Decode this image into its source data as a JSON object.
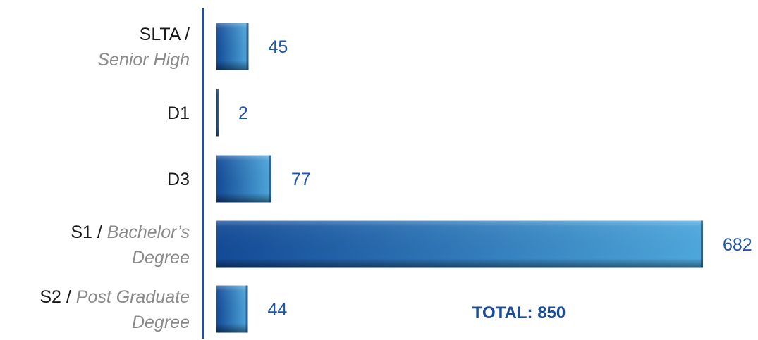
{
  "chart_data": {
    "type": "bar",
    "orientation": "horizontal",
    "categories": [
      {
        "main": "SLTA /",
        "sub": "Senior High",
        "sub_inline": false
      },
      {
        "main": "D1",
        "sub": "",
        "sub_inline": false
      },
      {
        "main": "D3",
        "sub": "",
        "sub_inline": false
      },
      {
        "main": "S1 /",
        "sub": "Bachelor’s",
        "sub_line2": "Degree",
        "sub_inline": true
      },
      {
        "main": "S2 /",
        "sub": "Post Graduate",
        "sub_line2": "Degree",
        "sub_inline": true
      }
    ],
    "values": [
      45,
      2,
      77,
      682,
      44
    ],
    "xlim": [
      0,
      682
    ],
    "grid": false,
    "legend": "none",
    "total_label": "TOTAL: 850",
    "colors": {
      "bar_dark": "#134a96",
      "bar_light": "#4ea8dc",
      "axis": "#1f4f9e",
      "value_text": "#1f56a8",
      "total_text": "#1a4c9c"
    }
  }
}
